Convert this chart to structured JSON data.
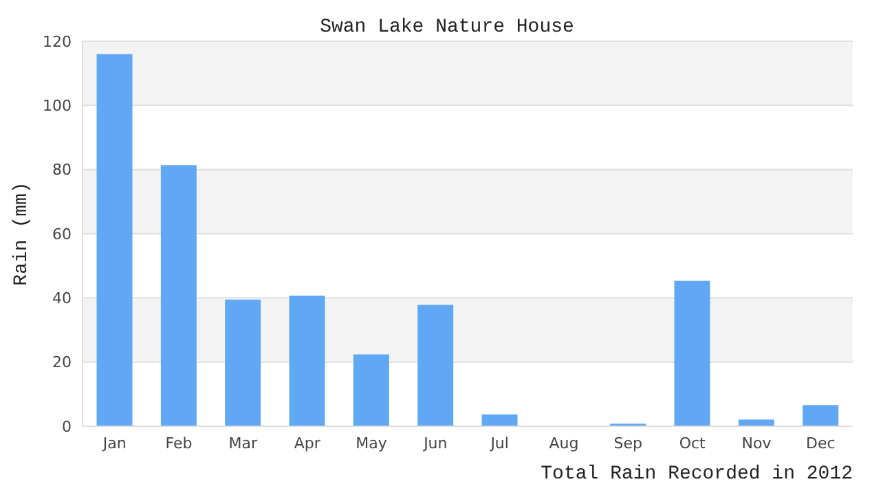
{
  "chart_data": {
    "type": "bar",
    "title": "Swan Lake Nature House",
    "xlabel": "Total Rain Recorded in 2012",
    "ylabel": "Rain (mm)",
    "categories": [
      "Jan",
      "Feb",
      "Mar",
      "Apr",
      "May",
      "Jun",
      "Jul",
      "Aug",
      "Sep",
      "Oct",
      "Nov",
      "Dec"
    ],
    "values": [
      116,
      81.4,
      39.5,
      40.7,
      22.4,
      37.8,
      3.7,
      0,
      0.8,
      45.3,
      2.1,
      6.6
    ],
    "color": "#60a8f4",
    "ylim": [
      0,
      120
    ],
    "yticks": [
      0,
      20,
      40,
      60,
      80,
      100,
      120
    ],
    "grid": "y"
  }
}
